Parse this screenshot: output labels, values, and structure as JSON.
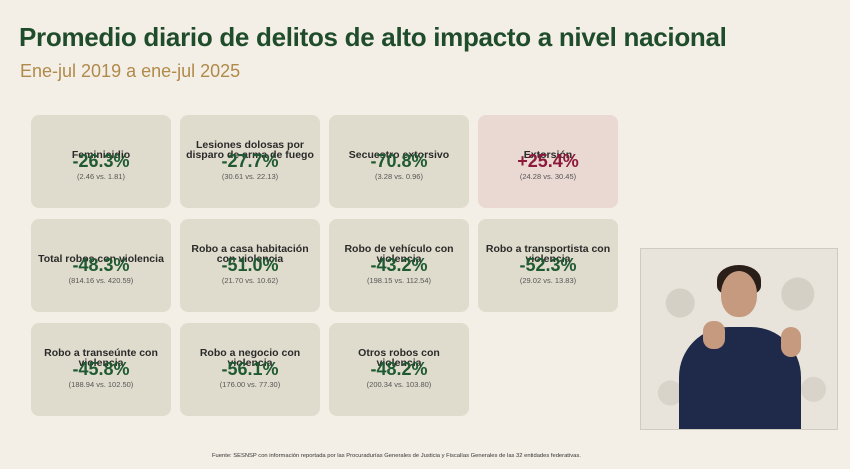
{
  "header": {
    "title": "Promedio diario de delitos de alto impacto a nivel nacional",
    "subtitle": "Ene-jul 2019 a ene-jul 2025"
  },
  "cards": [
    {
      "label": "Feminicidio",
      "value": "-26.3%",
      "detail": "(2.46 vs. 1.81)"
    },
    {
      "label": "Lesiones dolosas por disparo de arma de fuego",
      "value": "-27.7%",
      "detail": "(30.61 vs. 22.13)"
    },
    {
      "label": "Secuestro extorsivo",
      "value": "-70.8%",
      "detail": "(3.28 vs. 0.96)"
    },
    {
      "label": "Extorsión",
      "value": "+25.4%",
      "detail": "(24.28 vs. 30.45)"
    },
    {
      "label": "Total robos con violencia",
      "value": "-48.3%",
      "detail": "(814.16 vs. 420.59)"
    },
    {
      "label": "Robo a casa habitación con violencia",
      "value": "-51.0%",
      "detail": "(21.70 vs. 10.62)"
    },
    {
      "label": "Robo de vehículo con violencia",
      "value": "-43.2%",
      "detail": "(198.15 vs. 112.54)"
    },
    {
      "label": "Robo a transportista con violencia",
      "value": "-52.3%",
      "detail": "(29.02 vs. 13.83)"
    },
    {
      "label": "Robo a transeúnte con violencia",
      "value": "-45.8%",
      "detail": "(188.94 vs. 102.50)"
    },
    {
      "label": "Robo a negocio con violencia",
      "value": "-56.1%",
      "detail": "(176.00 vs. 77.30)"
    },
    {
      "label": "Otros robos con violencia",
      "value": "-48.2%",
      "detail": "(200.34 vs. 103.80)"
    }
  ],
  "footer": {
    "source": "Fuente: SESNSP con información reportada por las Procuradurías Generales de Justicia y Fiscalías Generales de las 32 entidades federativas."
  },
  "colors": {
    "decrease": "#1f5a32",
    "increase": "#8c1a3b"
  }
}
